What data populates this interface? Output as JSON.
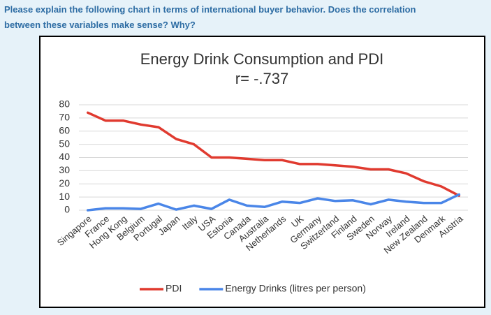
{
  "question": [
    "Please explain the following chart in terms of international buyer behavior. Does the correlation",
    "between these variables make sense? Why?"
  ],
  "chart_data": {
    "type": "line",
    "title": "Energy Drink Consumption and PDI",
    "subtitle": "r= -.737",
    "categories": [
      "Singapore",
      "France",
      "Hong Kong",
      "Belgium",
      "Portugal",
      "Japan",
      "Italy",
      "USA",
      "Estonia",
      "Canada",
      "Australia",
      "Netherlands",
      "UK",
      "Germany",
      "Switzerland",
      "Finland",
      "Sweden",
      "Norway",
      "Ireland",
      "New Zealand",
      "Denmark",
      "Austria"
    ],
    "series": [
      {
        "name": "PDI",
        "color": "#e03a2f",
        "values": [
          74,
          68,
          68,
          65,
          63,
          54,
          50,
          40,
          40,
          39,
          38,
          38,
          35,
          35,
          34,
          33,
          31,
          31,
          28,
          22,
          18,
          11
        ]
      },
      {
        "name": "Energy Drinks (litres per person)",
        "color": "#4a86e8",
        "values": [
          0,
          1.5,
          1.5,
          1,
          5,
          0.5,
          3.5,
          1,
          8,
          3.5,
          2.5,
          6.5,
          5.5,
          9,
          7,
          7.5,
          4.5,
          8,
          6.5,
          5.5,
          5.5,
          12
        ]
      }
    ],
    "ylim": [
      0,
      80
    ],
    "yticks": [
      0,
      10,
      20,
      30,
      40,
      50,
      60,
      70,
      80
    ],
    "grid": true,
    "legend": "bottom"
  }
}
